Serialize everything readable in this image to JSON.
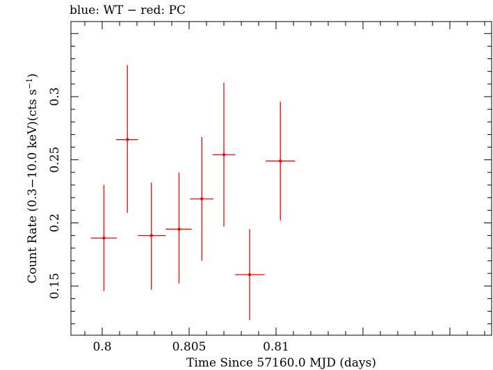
{
  "chart_data": {
    "type": "scatter",
    "title": "blue: WT − red: PC",
    "xlabel": "Time Since 57160.0 MJD (days)",
    "ylabel_main": "Count Rate (0.3−10.0 keV)(cts s",
    "ylabel_sup": "−1",
    "ylabel_end": ")",
    "xlim": [
      0.7982,
      0.8224
    ],
    "ylim": [
      0.111,
      0.3595
    ],
    "x_ticks": [
      0.8,
      0.805,
      0.81
    ],
    "x_tick_labels": [
      "0.8",
      "0.805",
      "0.81"
    ],
    "y_ticks": [
      0.15,
      0.2,
      0.25,
      0.3
    ],
    "y_tick_labels": [
      "0.15",
      "0.2",
      "0.25",
      "0.3"
    ],
    "grid": false,
    "series": [
      {
        "color": "#ff0000",
        "points": [
          {
            "x": 0.8001,
            "y": 0.188,
            "xlo": 0.79935,
            "xhi": 0.80085,
            "ylo": 0.146,
            "yhi": 0.23
          },
          {
            "x": 0.80145,
            "y": 0.266,
            "xlo": 0.8008,
            "xhi": 0.80205,
            "ylo": 0.208,
            "yhi": 0.325
          },
          {
            "x": 0.80283,
            "y": 0.19,
            "xlo": 0.80205,
            "xhi": 0.80365,
            "ylo": 0.147,
            "yhi": 0.232
          },
          {
            "x": 0.80442,
            "y": 0.195,
            "xlo": 0.80365,
            "xhi": 0.80515,
            "ylo": 0.152,
            "yhi": 0.24
          },
          {
            "x": 0.80573,
            "y": 0.219,
            "xlo": 0.80505,
            "xhi": 0.8064,
            "ylo": 0.17,
            "yhi": 0.268
          },
          {
            "x": 0.807,
            "y": 0.254,
            "xlo": 0.80635,
            "xhi": 0.80765,
            "ylo": 0.197,
            "yhi": 0.311
          },
          {
            "x": 0.80848,
            "y": 0.159,
            "xlo": 0.80765,
            "xhi": 0.80935,
            "ylo": 0.123,
            "yhi": 0.195
          },
          {
            "x": 0.81025,
            "y": 0.249,
            "xlo": 0.8094,
            "xhi": 0.8111,
            "ylo": 0.202,
            "yhi": 0.296
          }
        ]
      }
    ]
  }
}
